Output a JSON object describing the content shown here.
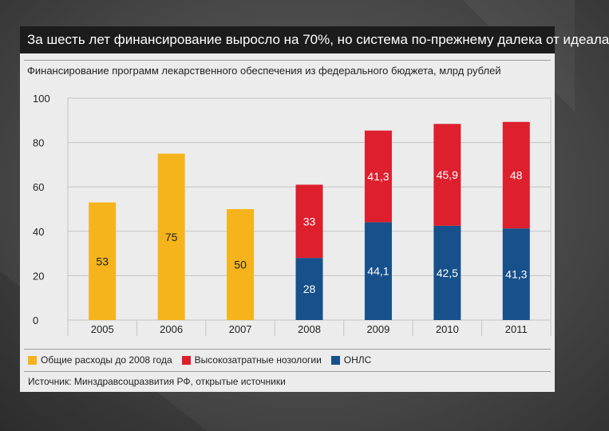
{
  "slide": {
    "title": "За шесть лет финансирование выросло на 70%, но система по-прежнему далека от идеала",
    "subtitle": "Финансирование программ лекарственного обеспечения из федерального бюджета, млрд рублей",
    "source": "Источник: Минздравсоцразвития РФ, открытые источники"
  },
  "colors": {
    "general": "#f5b41b",
    "high_cost": "#dd1f2e",
    "onls": "#17508a"
  },
  "chart_data": {
    "type": "bar",
    "stacked": true,
    "categories": [
      "2005",
      "2006",
      "2007",
      "2008",
      "2009",
      "2010",
      "2011"
    ],
    "series": [
      {
        "name": "Общие расходы до 2008 года",
        "color": "#f5b41b",
        "values": [
          53,
          75,
          50,
          null,
          null,
          null,
          null
        ],
        "labels": [
          "53",
          "75",
          "50",
          "",
          "",
          "",
          ""
        ]
      },
      {
        "name": "ОНЛС",
        "color": "#17508a",
        "values": [
          null,
          null,
          null,
          28,
          44.1,
          42.5,
          41.3
        ],
        "labels": [
          "",
          "",
          "",
          "28",
          "44,1",
          "42,5",
          "41,3"
        ]
      },
      {
        "name": "Высокозатратные нозологии",
        "color": "#dd1f2e",
        "values": [
          null,
          null,
          null,
          33,
          41.3,
          45.9,
          48
        ],
        "labels": [
          "",
          "",
          "",
          "33",
          "41,3",
          "45,9",
          "48"
        ]
      }
    ],
    "yticks": [
      0,
      20,
      40,
      60,
      80,
      100
    ],
    "ylim": [
      0,
      100
    ],
    "grid": true,
    "legend_position": "bottom-left"
  }
}
